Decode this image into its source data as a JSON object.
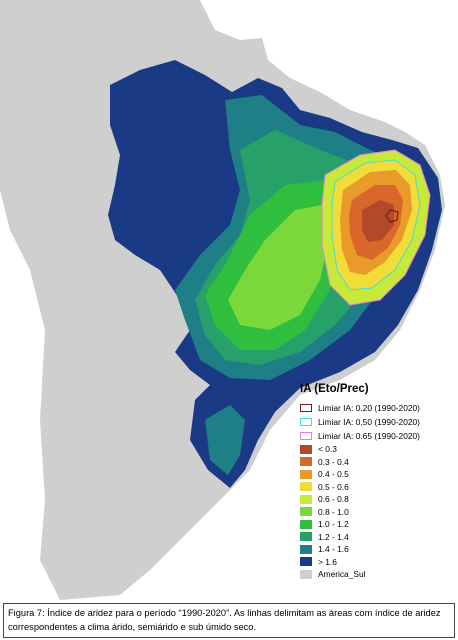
{
  "map": {
    "colors": {
      "background_land": "#cfcfcf",
      "ocean": "#ffffff",
      "border": "#ffffff"
    }
  },
  "legend": {
    "title": "IA (Eto/Prec)",
    "thresholds": [
      {
        "label": "Limiar IA: 0.20 (1990-2020)",
        "color": "#7a1c1c"
      },
      {
        "label": "Limiar IA: 0.50 (1990-2020)",
        "color": "#40e0d0"
      },
      {
        "label": "Limiar IA: 0.65 (1990-2020)",
        "color": "#e87fd6"
      }
    ],
    "classes": [
      {
        "label": "< 0.3",
        "color": "#b24a2a"
      },
      {
        "label": "0.3 - 0.4",
        "color": "#d9662a"
      },
      {
        "label": "0.4 - 0.5",
        "color": "#e89a2a"
      },
      {
        "label": "0.5 - 0.6",
        "color": "#f2dc3a"
      },
      {
        "label": "0.6 - 0.8",
        "color": "#c8e83a"
      },
      {
        "label": "0.8 - 1.0",
        "color": "#7ad83a"
      },
      {
        "label": "1.0 - 1.2",
        "color": "#2fbe3e"
      },
      {
        "label": "1.2 - 1.4",
        "color": "#27a06a"
      },
      {
        "label": "1.4 - 1.6",
        "color": "#1f7f86"
      },
      {
        "label": "> 1.6",
        "color": "#1a3a86"
      },
      {
        "label": "America_Sul",
        "color": "#cfcfcf"
      }
    ]
  },
  "caption": {
    "text": "Figura 7: Índice de aridez para o período “1990-2020”. As linhas delimitam as áreas com índice de aridez correspondentes a clima árido, semiárido e sub úmido seco."
  }
}
